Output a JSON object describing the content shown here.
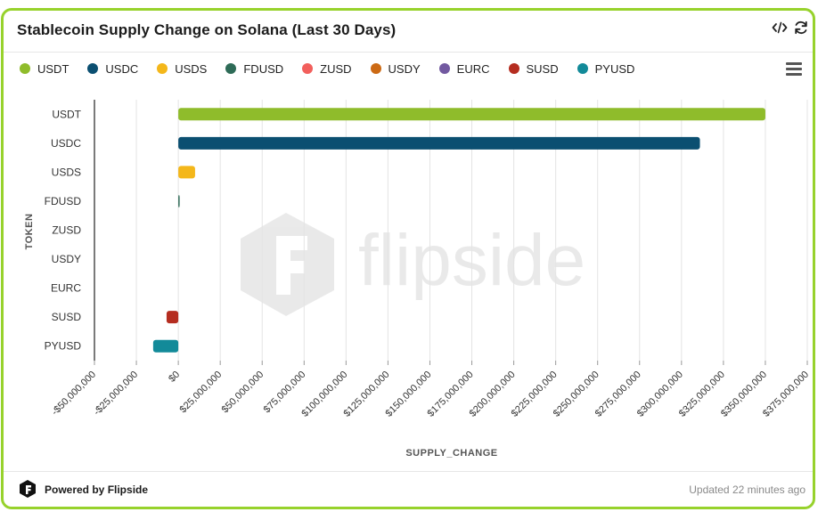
{
  "title": "Stablecoin Supply Change on Solana (Last 30 Days)",
  "header_icons": [
    "embed-code-icon",
    "refresh-icon"
  ],
  "legend": [
    {
      "label": "USDT",
      "color": "#8fbc2b"
    },
    {
      "label": "USDC",
      "color": "#0b4f71"
    },
    {
      "label": "USDS",
      "color": "#f4b71a"
    },
    {
      "label": "FDUSD",
      "color": "#2e6b57"
    },
    {
      "label": "ZUSD",
      "color": "#f25f5c"
    },
    {
      "label": "USDY",
      "color": "#cc6a14"
    },
    {
      "label": "EURC",
      "color": "#7259a0"
    },
    {
      "label": "SUSD",
      "color": "#b52d20"
    },
    {
      "label": "PYUSD",
      "color": "#128a99"
    }
  ],
  "watermark": "flipside",
  "footer": {
    "powered_by": "Powered by Flipside",
    "updated": "Updated 22 minutes ago"
  },
  "chart_data": {
    "type": "bar",
    "orientation": "horizontal",
    "title": "Stablecoin Supply Change on Solana (Last 30 Days)",
    "xlabel": "SUPPLY_CHANGE",
    "ylabel": "TOKEN",
    "categories": [
      "USDT",
      "USDC",
      "USDS",
      "FDUSD",
      "ZUSD",
      "USDY",
      "EURC",
      "SUSD",
      "PYUSD"
    ],
    "values": [
      350000000,
      311000000,
      10000000,
      800000,
      0,
      0,
      0,
      -7000000,
      -15000000
    ],
    "colors": [
      "#8fbc2b",
      "#0b4f71",
      "#f4b71a",
      "#2e6b57",
      "#f25f5c",
      "#cc6a14",
      "#7259a0",
      "#b52d20",
      "#128a99"
    ],
    "xlim": [
      -50000000,
      375000000
    ],
    "xticks": [
      -50000000,
      -25000000,
      0,
      25000000,
      50000000,
      75000000,
      100000000,
      125000000,
      150000000,
      175000000,
      200000000,
      225000000,
      250000000,
      275000000,
      300000000,
      325000000,
      350000000,
      375000000
    ],
    "xtick_labels": [
      "-$50,000,000",
      "-$25,000,000",
      "$0",
      "$25,000,000",
      "$50,000,000",
      "$75,000,000",
      "$100,000,000",
      "$125,000,000",
      "$150,000,000",
      "$175,000,000",
      "$200,000,000",
      "$225,000,000",
      "$250,000,000",
      "$275,000,000",
      "$300,000,000",
      "$325,000,000",
      "$350,000,000",
      "$375,000,000"
    ],
    "grid": true,
    "legend_position": "top"
  }
}
